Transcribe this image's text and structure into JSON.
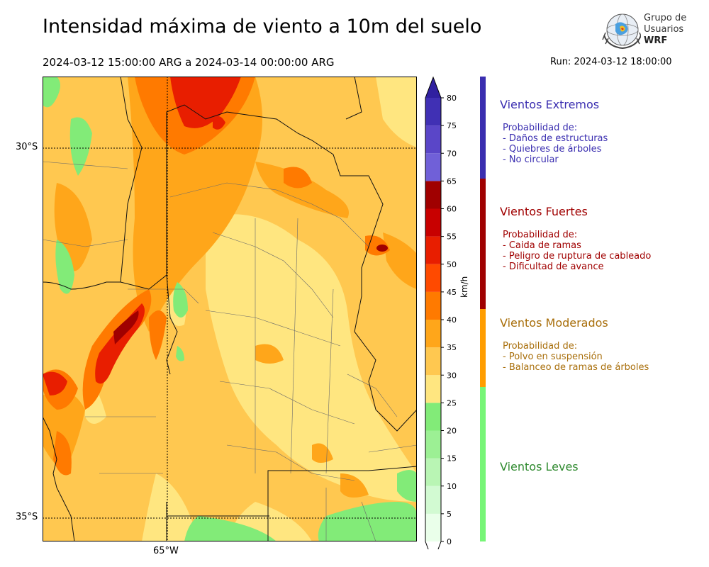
{
  "title": "Intensidad máxima de viento a 10m del suelo",
  "period": "2024-03-12 15:00:00 ARG  a  2024-03-14 00:00:00 ARG",
  "run": "Run: 2024-03-12 18:00:00",
  "logo": {
    "line1": "Grupo de",
    "line2": "Usuarios",
    "line3": "WRF"
  },
  "map": {
    "lat_labels": [
      "30°S",
      "35°S"
    ],
    "lon_labels": [
      "65°W"
    ]
  },
  "colorbar": {
    "unit": "km/h",
    "ticks": [
      "0",
      "5",
      "10",
      "15",
      "20",
      "25",
      "30",
      "35",
      "40",
      "45",
      "50",
      "55",
      "60",
      "65",
      "70",
      "75",
      "80"
    ],
    "colors": [
      "#eaffea",
      "#d2fad2",
      "#b9f5b4",
      "#9cf094",
      "#82eb78",
      "#ffe680",
      "#ffc850",
      "#ffa61a",
      "#ff7a00",
      "#ff4a00",
      "#e81e00",
      "#c80000",
      "#a00000",
      "#7060d8",
      "#5a46c8",
      "#4030b4",
      "#3020a0"
    ]
  },
  "categories": [
    {
      "title": "Vientos Extremos",
      "color": "#3a2eb0",
      "prob": "Probabilidad de:",
      "items": [
        "- Daños de estructuras",
        "- Quiebres de árboles",
        "- No circular"
      ]
    },
    {
      "title": "Vientos Fuertes",
      "color": "#a00000",
      "prob": "Probabilidad de:",
      "items": [
        "- Caida de ramas",
        "- Peligro de ruptura de cableado",
        "- Dificultad de avance"
      ]
    },
    {
      "title": "Vientos Moderados",
      "color": "#a86e0a",
      "prob": "Probabilidad de:",
      "items": [
        "- Polvo en suspensión",
        "- Balanceo de ramas de árboles"
      ]
    },
    {
      "title": "Vientos Leves",
      "color": "#2f8a2f",
      "prob": "",
      "items": []
    }
  ],
  "class_strip_colors": [
    "#3a2eb0",
    "#a00000",
    "#ff9d00",
    "#77f577"
  ]
}
